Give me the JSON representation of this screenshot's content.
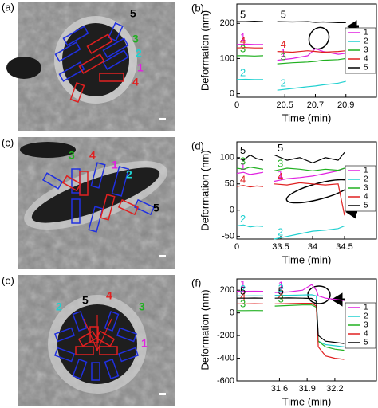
{
  "image_panels": [
    {
      "panel_label": "(a)",
      "markers": [
        "5",
        "3",
        "2",
        "1",
        "4"
      ]
    },
    {
      "panel_label": "(c)",
      "markers": [
        "3",
        "4",
        "1",
        "2",
        "5"
      ]
    },
    {
      "panel_label": "(e)",
      "markers": [
        "5",
        "4",
        "2",
        "3",
        "1"
      ]
    }
  ],
  "chart_data": [
    {
      "type": "line",
      "panel_label": "(b)",
      "ylabel": "Deformation (nm)",
      "xlabel": "Time (min)",
      "xsegments": [
        [
          0,
          0.15
        ],
        [
          20.41,
          21.1
        ]
      ],
      "x": [
        0,
        0.05,
        0.1,
        0.15,
        20.45,
        20.55,
        20.65,
        20.7,
        20.75,
        20.85,
        20.9
      ],
      "xticks": [
        0,
        20.5,
        20.7,
        20.9
      ],
      "ylim": [
        -10,
        255
      ],
      "yticks": [
        0,
        100,
        200
      ],
      "legend": "upper right",
      "series": [
        {
          "name": "1",
          "color": "#e020e0",
          "values": [
            140,
            141,
            140,
            140,
            95,
            100,
            108,
            128,
            120,
            112,
            115
          ]
        },
        {
          "name": "2",
          "color": "#20d0d0",
          "values": [
            40,
            41,
            40,
            40,
            10,
            15,
            20,
            22,
            25,
            30,
            35
          ]
        },
        {
          "name": "3",
          "color": "#20b020",
          "values": [
            108,
            108,
            107,
            108,
            85,
            88,
            90,
            92,
            95,
            97,
            100
          ]
        },
        {
          "name": "4",
          "color": "#e02020",
          "values": [
            130,
            131,
            130,
            130,
            120,
            118,
            122,
            120,
            118,
            120,
            122
          ]
        },
        {
          "name": "5",
          "color": "#000000",
          "values": [
            205,
            205,
            206,
            205,
            205,
            204,
            205,
            203,
            204,
            202,
            202
          ]
        }
      ]
    },
    {
      "type": "line",
      "panel_label": "(d)",
      "ylabel": "Deformation (nm)",
      "xlabel": "Time (min)",
      "xsegments": [
        [
          0,
          0.4
        ],
        [
          33.35,
          35.0
        ]
      ],
      "x": [
        0,
        0.1,
        0.2,
        0.3,
        0.4,
        33.4,
        33.6,
        33.8,
        34.0,
        34.2,
        34.4,
        34.5
      ],
      "xticks": [
        0,
        33.5,
        34,
        34.5
      ],
      "ylim": [
        -55,
        130
      ],
      "yticks": [
        -50,
        0,
        50,
        100
      ],
      "legend": "upper right",
      "series": [
        {
          "name": "1",
          "color": "#e020e0",
          "values": [
            70,
            72,
            68,
            70,
            72,
            55,
            60,
            62,
            65,
            70,
            75,
            80
          ]
        },
        {
          "name": "2",
          "color": "#20d0d0",
          "values": [
            -30,
            -28,
            -32,
            -30,
            -31,
            -55,
            -50,
            -45,
            -40,
            -38,
            -35,
            -30
          ]
        },
        {
          "name": "3",
          "color": "#20b020",
          "values": [
            80,
            78,
            82,
            80,
            78,
            75,
            80,
            78,
            75,
            78,
            76,
            80
          ]
        },
        {
          "name": "4",
          "color": "#e02020",
          "values": [
            45,
            47,
            44,
            46,
            45,
            50,
            48,
            52,
            50,
            48,
            50,
            -10
          ]
        },
        {
          "name": "5",
          "color": "#000000",
          "values": [
            100,
            95,
            105,
            98,
            95,
            105,
            95,
            100,
            90,
            100,
            95,
            110
          ]
        }
      ]
    },
    {
      "type": "line",
      "panel_label": "(f)",
      "ylabel": "Deformation (nm)",
      "xlabel": "Time (min)",
      "xsegments": [
        [
          0,
          0.3
        ],
        [
          31.51,
          32.65
        ]
      ],
      "x": [
        0,
        0.1,
        0.2,
        0.3,
        31.55,
        31.7,
        31.85,
        31.95,
        32.0,
        32.02,
        32.1,
        32.2,
        32.3
      ],
      "xticks": [
        31.6,
        31.9,
        32.2
      ],
      "ylim": [
        -600,
        300
      ],
      "yticks": [
        -600,
        -400,
        -200,
        0,
        200
      ],
      "legend": "upper right",
      "series": [
        {
          "name": "1",
          "color": "#e020e0",
          "values": [
            190,
            190,
            191,
            190,
            180,
            185,
            200,
            250,
            200,
            150,
            130,
            120,
            110
          ]
        },
        {
          "name": "2",
          "color": "#20d0d0",
          "values": [
            150,
            150,
            151,
            150,
            155,
            155,
            158,
            160,
            150,
            -250,
            -280,
            -290,
            -300
          ]
        },
        {
          "name": "3",
          "color": "#20b020",
          "values": [
            20,
            20,
            21,
            20,
            60,
            65,
            70,
            70,
            50,
            -250,
            -300,
            -320,
            -330
          ]
        },
        {
          "name": "4",
          "color": "#e02020",
          "values": [
            80,
            80,
            81,
            80,
            80,
            82,
            85,
            85,
            60,
            -300,
            -380,
            -400,
            -410
          ]
        },
        {
          "name": "5",
          "color": "#000000",
          "values": [
            130,
            130,
            131,
            130,
            130,
            132,
            130,
            128,
            100,
            -200,
            -250,
            -260,
            -270
          ]
        }
      ]
    }
  ]
}
